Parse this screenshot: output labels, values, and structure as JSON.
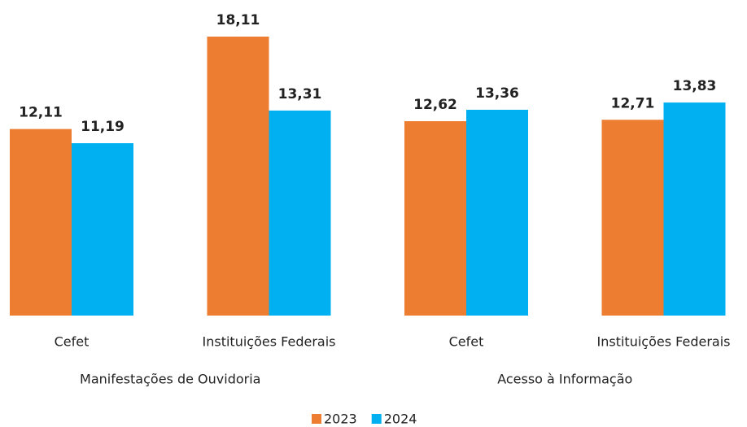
{
  "chart_data": {
    "type": "bar",
    "groups": [
      {
        "label": "Manifestações de Ouvidoria",
        "categories": [
          "Cefet",
          "Instituições Federais"
        ]
      },
      {
        "label": "Acesso à Informação",
        "categories": [
          "Cefet",
          "Instituições Federais"
        ]
      }
    ],
    "series": [
      {
        "name": "2023",
        "color": "#ed7d31",
        "values": [
          12.11,
          18.11,
          12.62,
          12.71
        ],
        "value_labels": [
          "12,11",
          "18,11",
          "12,62",
          "12,71"
        ]
      },
      {
        "name": "2024",
        "color": "#00b0f0",
        "values": [
          11.19,
          13.31,
          13.36,
          13.83
        ],
        "value_labels": [
          "11,19",
          "13,31",
          "13,36",
          "13,83"
        ]
      }
    ],
    "legend": "bottom"
  }
}
